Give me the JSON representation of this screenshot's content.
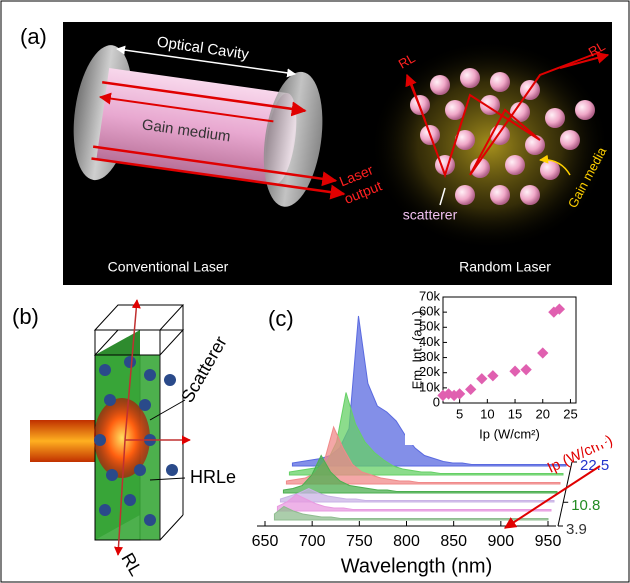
{
  "panels": {
    "a": {
      "label": "(a)",
      "optical_cavity": "Optical Cavity",
      "gain_medium": "Gain medium",
      "laser_output": [
        "Laser",
        "output"
      ],
      "rl": [
        "RL",
        "RL"
      ],
      "scatterer": "scatterer",
      "gain_media": "Gain media",
      "conventional": "Conventional Laser",
      "random": "Random Laser"
    },
    "b": {
      "label": "(b)",
      "scatterer": "Scatterer",
      "hrle": "HRLe",
      "rl": "RL"
    },
    "c": {
      "label": "(c)"
    }
  },
  "chart_data": [
    {
      "type": "waterfall",
      "xlabel": "Wavelength (nm)",
      "zlabel": "Ip (W/cm²)",
      "x": [
        660,
        670,
        680,
        690,
        700,
        710,
        720,
        730,
        740,
        750,
        760,
        770,
        780,
        790,
        800,
        810,
        820,
        830,
        840,
        850,
        860,
        870,
        880,
        890,
        900,
        910,
        920,
        930,
        940,
        950
      ],
      "xlim": [
        650,
        950
      ],
      "xticks": [
        650,
        700,
        750,
        800,
        850,
        900,
        950
      ],
      "ylim": [
        0,
        100
      ],
      "zlim": [
        3.9,
        22.5
      ],
      "zticks": [
        3.9,
        10.8,
        22.5
      ],
      "ztick_colors": [
        "#333333",
        "#228b22",
        "#2233cc"
      ],
      "series": [
        {
          "color": "#8fbc8f",
          "values": [
            4,
            9,
            6,
            4,
            3,
            2,
            2,
            1,
            1,
            1,
            1,
            1,
            1,
            1,
            1,
            1,
            1,
            1,
            1,
            1,
            1,
            1,
            1,
            1,
            1,
            1,
            1,
            1,
            1,
            1
          ]
        },
        {
          "color": "#e89ae0",
          "values": [
            3,
            6,
            11,
            8,
            5,
            3,
            2,
            2,
            1,
            1,
            1,
            1,
            1,
            1,
            1,
            1,
            1,
            1,
            1,
            1,
            1,
            1,
            1,
            1,
            1,
            1,
            1,
            1,
            1,
            1
          ]
        },
        {
          "color": "#c9b3e6",
          "values": [
            2,
            4,
            6,
            9,
            6,
            4,
            3,
            2,
            2,
            1,
            1,
            1,
            1,
            1,
            1,
            1,
            1,
            1,
            1,
            1,
            1,
            1,
            1,
            1,
            1,
            1,
            1,
            1,
            1,
            1
          ]
        },
        {
          "color": "#4caf50",
          "values": [
            2,
            3,
            5,
            12,
            25,
            14,
            8,
            5,
            4,
            3,
            2,
            2,
            1,
            1,
            1,
            1,
            1,
            1,
            1,
            1,
            1,
            1,
            1,
            1,
            1,
            1,
            1,
            1,
            1,
            1
          ]
        },
        {
          "color": "#f08a8a",
          "values": [
            2,
            3,
            4,
            7,
            15,
            38,
            24,
            13,
            8,
            6,
            4,
            3,
            2,
            2,
            1,
            1,
            1,
            1,
            1,
            1,
            1,
            1,
            1,
            1,
            1,
            1,
            1,
            1,
            1,
            1
          ]
        },
        {
          "color": "#66d066",
          "values": [
            2,
            3,
            4,
            5,
            9,
            22,
            55,
            34,
            22,
            15,
            10,
            6,
            4,
            3,
            2,
            2,
            1,
            1,
            1,
            1,
            1,
            1,
            1,
            1,
            1,
            1,
            1,
            1,
            1,
            1
          ]
        },
        {
          "color": "#5a6ae0",
          "values": [
            2,
            3,
            4,
            5,
            7,
            12,
            25,
            100,
            55,
            40,
            36,
            30,
            20,
            12,
            7,
            5,
            3,
            2,
            2,
            1,
            1,
            1,
            1,
            1,
            1,
            1,
            1,
            1,
            1,
            1
          ]
        }
      ]
    },
    {
      "type": "scatter",
      "xlabel": "Ip (W/cm²)",
      "ylabel": "Em. Int. (a.u.)",
      "color": "#e060b0",
      "x": [
        2,
        3,
        4,
        5,
        7,
        9,
        11,
        15,
        17,
        20,
        22,
        23
      ],
      "values": [
        5000,
        6000,
        5000,
        6000,
        9000,
        16000,
        18000,
        21000,
        22000,
        33000,
        60000,
        62000
      ],
      "xlim": [
        2,
        26
      ],
      "xticks": [
        5,
        10,
        15,
        20,
        25
      ],
      "ylim": [
        0,
        70000
      ],
      "yticks": [
        0,
        {
          "value": 10000,
          "label": "10k"
        },
        {
          "value": 20000,
          "label": "20k"
        },
        {
          "value": 30000,
          "label": "30k"
        },
        {
          "value": 40000,
          "label": "40k"
        },
        {
          "value": 50000,
          "label": "50k"
        },
        {
          "value": 60000,
          "label": "60k"
        },
        {
          "value": 70000,
          "label": "70k"
        }
      ]
    }
  ]
}
